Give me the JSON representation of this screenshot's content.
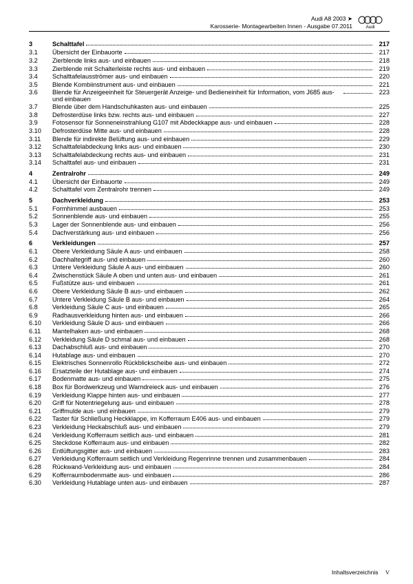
{
  "header": {
    "line1": "Audi A8 2003 ➤",
    "line2": "Karosserie- Montagearbeiten Innen - Ausgabe 07.2011",
    "brand": "Audi"
  },
  "footer": {
    "label": "Inhaltsverzeichnis",
    "roman": "V"
  },
  "toc": [
    {
      "n": "3",
      "t": "Schalttafel",
      "p": "217",
      "sec": true
    },
    {
      "n": "3.1",
      "t": "Übersicht der Einbauorte",
      "p": "217"
    },
    {
      "n": "3.2",
      "t": "Zierblende links aus- und einbauen",
      "p": "218"
    },
    {
      "n": "3.3",
      "t": "Zierblende mit Schalterleiste rechts aus- und einbauen",
      "p": "219"
    },
    {
      "n": "3.4",
      "t": "Schalttafelausströmer aus- und einbauen",
      "p": "220"
    },
    {
      "n": "3.5",
      "t": "Blende Kombiinstrument aus- und einbauen",
      "p": "221"
    },
    {
      "n": "3.6",
      "t": "Blende für Anzeigeeinheit für Steuergerät Anzeige- und Bedieneinheit für Information, vom J685 aus- und einbauen",
      "p": "223"
    },
    {
      "n": "3.7",
      "t": "Blende über dem Handschuhkasten aus- und einbauen",
      "p": "225"
    },
    {
      "n": "3.8",
      "t": "Defrosterdüse links bzw. rechts aus- und einbauen",
      "p": "227"
    },
    {
      "n": "3.9",
      "t": "Fotosensor für Sonneneinstrahlung G107 mit Abdeckkappe aus- und einbauen",
      "p": "228"
    },
    {
      "n": "3.10",
      "t": "Defrosterdüse Mitte aus- und einbauen",
      "p": "228"
    },
    {
      "n": "3.11",
      "t": "Blende für indirekte Belüftung aus- und einbauen",
      "p": "229"
    },
    {
      "n": "3.12",
      "t": "Schalttafelabdeckung links aus- und einbauen",
      "p": "230"
    },
    {
      "n": "3.13",
      "t": "Schalttafelabdeckung rechts aus- und einbauen",
      "p": "231"
    },
    {
      "n": "3.14",
      "t": "Schalttafel aus- und einbauen",
      "p": "231"
    },
    {
      "n": "4",
      "t": "Zentralrohr",
      "p": "249",
      "sec": true
    },
    {
      "n": "4.1",
      "t": "Übersicht der Einbauorte",
      "p": "249"
    },
    {
      "n": "4.2",
      "t": "Schalttafel vom Zentralrohr trennen",
      "p": "249"
    },
    {
      "n": "5",
      "t": "Dachverkleidung",
      "p": "253",
      "sec": true
    },
    {
      "n": "5.1",
      "t": "Formhimmel ausbauen",
      "p": "253"
    },
    {
      "n": "5.2",
      "t": "Sonnenblende aus- und einbauen",
      "p": "255"
    },
    {
      "n": "5.3",
      "t": "Lager der Sonnenblende aus- und einbauen",
      "p": "256"
    },
    {
      "n": "5.4",
      "t": "Dachverstärkung aus- und einbauen",
      "p": "256"
    },
    {
      "n": "6",
      "t": "Verkleidungen",
      "p": "257",
      "sec": true
    },
    {
      "n": "6.1",
      "t": "Obere Verkleidung Säule A aus- und einbauen",
      "p": "258"
    },
    {
      "n": "6.2",
      "t": "Dachhaltegriff aus- und einbauen",
      "p": "260"
    },
    {
      "n": "6.3",
      "t": "Untere Verkleidung Säule A aus- und einbauen",
      "p": "260"
    },
    {
      "n": "6.4",
      "t": "Zwischenstück Säule A oben und unten aus- und einbauen",
      "p": "261"
    },
    {
      "n": "6.5",
      "t": "Fußstütze aus- und einbauen",
      "p": "261"
    },
    {
      "n": "6.6",
      "t": "Obere Verkleidung Säule B aus- und einbauen",
      "p": "262"
    },
    {
      "n": "6.7",
      "t": "Untere Verkleidung Säule B aus- und einbauen",
      "p": "264"
    },
    {
      "n": "6.8",
      "t": "Verkleidung Säule C aus- und einbauen",
      "p": "265"
    },
    {
      "n": "6.9",
      "t": "Radhausverkleidung hinten aus- und einbauen",
      "p": "266"
    },
    {
      "n": "6.10",
      "t": "Verkleidung Säule D aus- und einbauen",
      "p": "266"
    },
    {
      "n": "6.11",
      "t": "Mantelhaken aus- und einbauen",
      "p": "268"
    },
    {
      "n": "6.12",
      "t": "Verkleidung Säule D schmal aus- und einbauen",
      "p": "268"
    },
    {
      "n": "6.13",
      "t": "Dachabschluß aus- und einbauen",
      "p": "270"
    },
    {
      "n": "6.14",
      "t": "Hutablage aus- und einbauen",
      "p": "270"
    },
    {
      "n": "6.15",
      "t": "Elektrisches Sonnenrollo Rückblickscheibe aus- und einbauen",
      "p": "272"
    },
    {
      "n": "6.16",
      "t": "Ersatzteile der Hutablage aus- und einbauen",
      "p": "274"
    },
    {
      "n": "6.17",
      "t": "Bodenmatte aus- und einbauen",
      "p": "275"
    },
    {
      "n": "6.18",
      "t": "Box für Bordwerkzeug und Warndreieck aus- und einbauen",
      "p": "276"
    },
    {
      "n": "6.19",
      "t": "Verkleidung Klappe hinten aus- und einbauen",
      "p": "277"
    },
    {
      "n": "6.20",
      "t": "Griff für Notentriegelung aus- und einbauen",
      "p": "278"
    },
    {
      "n": "6.21",
      "t": "Griffmulde aus- und einbauen",
      "p": "279"
    },
    {
      "n": "6.22",
      "t": "Taster für Schließung Heckklappe, im Kofferraum E406 aus- und einbauen",
      "p": "279"
    },
    {
      "n": "6.23",
      "t": "Verkleidung Heckabschluß aus- und einbauen",
      "p": "279"
    },
    {
      "n": "6.24",
      "t": "Verkleidung Kofferraum seitlich aus- und einbauen",
      "p": "281"
    },
    {
      "n": "6.25",
      "t": "Steckdose Kofferraum aus- und einbauen",
      "p": "282"
    },
    {
      "n": "6.26",
      "t": "Entlüftungsgitter aus- und einbauen",
      "p": "283"
    },
    {
      "n": "6.27",
      "t": "Verkleidung Kofferraum seitlich und Verkleidung Regenrinne trennen und zusammenbauen",
      "p": "284"
    },
    {
      "n": "6.28",
      "t": "Rückwand-Verkleidung aus- und einbauen",
      "p": "284"
    },
    {
      "n": "6.29",
      "t": "Kofferraumbodenmatte aus- und einbauen",
      "p": "286"
    },
    {
      "n": "6.30",
      "t": "Verkleidung Hutablage unten aus- und einbauen",
      "p": "287"
    }
  ]
}
